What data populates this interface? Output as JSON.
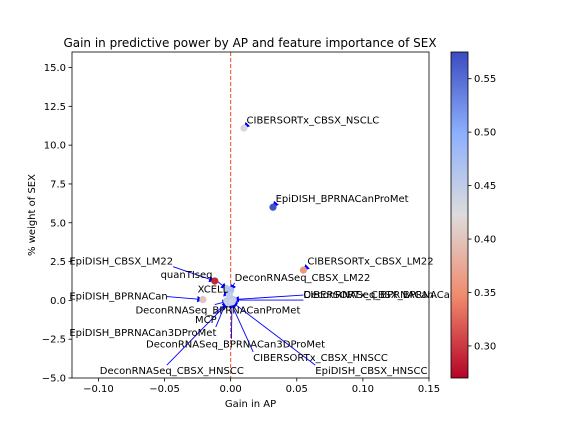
{
  "chart_data": {
    "type": "scatter",
    "title": "Gain in predictive power by AP and feature importance of SEX",
    "xlabel": "Gain in AP",
    "ylabel": "% weight of SEX",
    "xlim": [
      -0.12,
      0.15
    ],
    "ylim": [
      -5.0,
      16.0
    ],
    "xticks": [
      -0.1,
      -0.05,
      0.0,
      0.05,
      0.1,
      0.15
    ],
    "xtick_labels": [
      "−0.10",
      "−0.05",
      "0.00",
      "0.05",
      "0.10",
      "0.15"
    ],
    "yticks": [
      -5.0,
      -2.5,
      0.0,
      2.5,
      5.0,
      7.5,
      10.0,
      12.5,
      15.0
    ],
    "ytick_labels": [
      "−5.0",
      "−2.5",
      "0.0",
      "2.5",
      "5.0",
      "7.5",
      "10.0",
      "12.5",
      "15.0"
    ],
    "grid": false,
    "reference_lines": {
      "vertical_x": 0.0,
      "color": "#e8501a",
      "style": "dashed"
    },
    "colorbar": {
      "colormap": "coolwarm_r",
      "range": [
        0.27,
        0.575
      ],
      "ticks": [
        0.3,
        0.35,
        0.4,
        0.45,
        0.5,
        0.55
      ],
      "tick_labels": [
        "0.30",
        "0.35",
        "0.40",
        "0.45",
        "0.50",
        "0.55"
      ]
    },
    "points": [
      {
        "label": "CIBERSORTx_CBSX_NSCLC",
        "x": 0.01,
        "y": 11.1,
        "c": 0.43
      },
      {
        "label": "EpiDISH_BPRNACanProMet",
        "x": 0.032,
        "y": 6.0,
        "c": 0.57
      },
      {
        "label": "CIBERSORTx_CBSX_LM22",
        "x": 0.055,
        "y": 1.95,
        "c": 0.36
      },
      {
        "label": "EpiDISH_CBSX_LM22",
        "x": -0.012,
        "y": 1.25,
        "c": 0.29
      },
      {
        "label": "quanTIseq",
        "x": -0.003,
        "y": 0.75,
        "c": 0.46
      },
      {
        "label": "DeconRNASeq_CBSX_LM22",
        "x": 0.0,
        "y": 0.65,
        "c": 0.47
      },
      {
        "label": "XCELL",
        "x": -0.001,
        "y": 0.35,
        "c": 0.45
      },
      {
        "label": "EpiDISH_BPRNACan",
        "x": -0.021,
        "y": 0.05,
        "c": 0.4
      },
      {
        "label": "DeconRNASeq_BPRNACanProMet",
        "x": -0.002,
        "y": -0.05,
        "c": 0.46
      },
      {
        "label": "MCP",
        "x": -0.001,
        "y": -0.1,
        "c": 0.44
      },
      {
        "label": "EpiDISH_BPRNACan3DProMet",
        "x": -0.003,
        "y": -0.02,
        "c": 0.45
      },
      {
        "label": "DeconRNASeq_BPRNACan3DProMet",
        "x": 0.001,
        "y": -0.08,
        "c": 0.44
      },
      {
        "label": "DeconRNASeq_BPRNACan",
        "x": 0.002,
        "y": 0.05,
        "c": 0.46
      },
      {
        "label": "CIBERSORTx_CBSX_BPRNACan",
        "x": 0.001,
        "y": 0.02,
        "c": 0.45
      },
      {
        "label": "DeconRNASeq_CBSX_HNSCC",
        "x": -0.002,
        "y": -0.15,
        "c": 0.44
      },
      {
        "label": "CIBERSORTx_CBSX_HNSCC",
        "x": 0.0,
        "y": -0.12,
        "c": 0.45
      },
      {
        "label": "EpiDISH_CBSX_HNSCC",
        "x": 0.001,
        "y": -0.1,
        "c": 0.44
      }
    ],
    "annotations": [
      {
        "text": "CIBERSORTx_CBSX_NSCLC",
        "tx": 0.012,
        "ty": 11.4,
        "px": 0.01,
        "py": 11.1
      },
      {
        "text": "EpiDISH_BPRNACanProMet",
        "tx": 0.034,
        "ty": 6.35,
        "px": 0.032,
        "py": 6.0
      },
      {
        "text": "CIBERSORTx_CBSX_LM22",
        "tx": 0.058,
        "ty": 2.3,
        "px": 0.055,
        "py": 1.95
      },
      {
        "text": "EpiDISH_CBSX_LM22",
        "tx": -0.122,
        "ty": 2.3,
        "px": -0.012,
        "py": 1.25
      },
      {
        "text": "quanTIseq",
        "tx": -0.053,
        "ty": 1.45,
        "px": -0.003,
        "py": 0.75
      },
      {
        "text": "DeconRNASeq_CBSX_LM22",
        "tx": 0.003,
        "ty": 1.25,
        "px": 0.0,
        "py": 0.65
      },
      {
        "text": "XCELL",
        "tx": -0.025,
        "ty": 0.5,
        "px": -0.001,
        "py": 0.35
      },
      {
        "text": "EpiDISH_BPRNACan",
        "tx": -0.122,
        "ty": 0.05,
        "px": -0.021,
        "py": 0.05
      },
      {
        "text": "DeconRNASeq_BPRNACanProMet",
        "tx": -0.072,
        "ty": -0.85,
        "px": -0.002,
        "py": -0.05
      },
      {
        "text": "MCP",
        "tx": -0.027,
        "ty": -1.45,
        "px": -0.001,
        "py": -0.1
      },
      {
        "text": "EpiDISH_BPRNACan3DProMet",
        "tx": -0.122,
        "ty": -2.3,
        "px": -0.003,
        "py": -0.02
      },
      {
        "text": "DeconRNASeq_BPRNACan3DProMet",
        "tx": -0.064,
        "ty": -3.05,
        "px": 0.001,
        "py": -0.08
      },
      {
        "text": "DeconRNASeq_BPRNACan",
        "tx": 0.055,
        "ty": 0.15,
        "px": 0.002,
        "py": 0.05
      },
      {
        "text": "CIBERSORTx_CBSX_BPRNACan",
        "tx": 0.055,
        "ty": 0.15,
        "px": 0.001,
        "py": 0.02
      },
      {
        "text": "DeconRNASeq_CBSX_HNSCC",
        "tx": -0.099,
        "ty": -4.75,
        "px": -0.002,
        "py": -0.15
      },
      {
        "text": "CIBERSORTx_CBSX_HNSCC",
        "tx": 0.017,
        "ty": -3.9,
        "px": 0.0,
        "py": -0.12
      },
      {
        "text": "EpiDISH_CBSX_HNSCC",
        "tx": 0.064,
        "ty": -4.75,
        "px": 0.001,
        "py": -0.1
      }
    ]
  }
}
